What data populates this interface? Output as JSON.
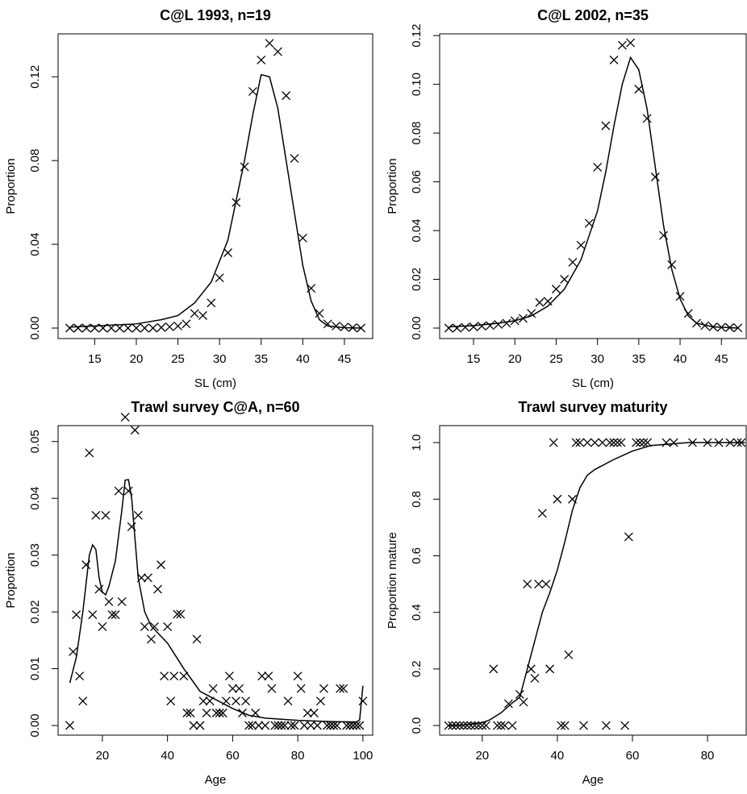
{
  "chart_data": [
    {
      "type": "scatter",
      "title": "C@L 1993, n=19",
      "xlabel": "SL (cm)",
      "ylabel": "Proportion",
      "xlim": [
        10.6,
        48.4
      ],
      "ylim": [
        -0.005,
        0.1405
      ],
      "xticks": [
        15,
        20,
        25,
        30,
        35,
        40,
        45
      ],
      "yticks": [
        {
          "value": 0,
          "label": "0.00"
        },
        {
          "value": 0.04,
          "label": "0.04"
        },
        {
          "value": 0.08,
          "label": "0.08"
        },
        {
          "value": 0.12,
          "label": "0.12"
        }
      ],
      "series": [
        {
          "kind": "points",
          "color": "#000000",
          "x": [
            12,
            13,
            14,
            15,
            16,
            17,
            18,
            19,
            20,
            21,
            22,
            23,
            24,
            25,
            26,
            27,
            28,
            29,
            30,
            31,
            32,
            33,
            34,
            35,
            36,
            37,
            38,
            39,
            40,
            41,
            42,
            43,
            44,
            45,
            46,
            47
          ],
          "values": [
            0,
            0,
            0,
            0,
            0,
            0,
            0,
            0,
            0,
            0,
            0,
            0.0003,
            0.0006,
            0.001,
            0.002,
            0.007,
            0.006,
            0.012,
            0.024,
            0.036,
            0.06,
            0.077,
            0.113,
            0.128,
            0.136,
            0.132,
            0.111,
            0.081,
            0.043,
            0.019,
            0.007,
            0.002,
            0.001,
            0.0005,
            0.0002,
            0
          ]
        },
        {
          "kind": "line",
          "color": "#000000",
          "x": [
            12,
            15,
            20,
            23,
            25,
            27,
            29,
            31,
            33,
            34,
            35,
            36,
            37,
            38,
            39,
            40,
            41,
            42,
            43,
            45,
            47
          ],
          "values": [
            0.0005,
            0.001,
            0.002,
            0.004,
            0.006,
            0.012,
            0.022,
            0.042,
            0.08,
            0.102,
            0.121,
            0.12,
            0.105,
            0.08,
            0.055,
            0.03,
            0.013,
            0.004,
            0.001,
            0.0002,
            0
          ]
        }
      ]
    },
    {
      "type": "scatter",
      "title": "C@L 2002, n=35",
      "xlabel": "SL (cm)",
      "ylabel": "Proportion",
      "xlim": [
        10.9,
        48.0
      ],
      "ylim": [
        -0.0043,
        0.1207
      ],
      "xticks": [
        15,
        20,
        25,
        30,
        35,
        40,
        45
      ],
      "yticks": [
        {
          "value": 0,
          "label": "0.00"
        },
        {
          "value": 0.02,
          "label": "0.02"
        },
        {
          "value": 0.04,
          "label": "0.04"
        },
        {
          "value": 0.06,
          "label": "0.06"
        },
        {
          "value": 0.08,
          "label": "0.08"
        },
        {
          "value": 0.1,
          "label": "0.10"
        },
        {
          "value": 0.12,
          "label": "0.12"
        }
      ],
      "series": [
        {
          "kind": "points",
          "color": "#000000",
          "x": [
            12,
            13,
            14,
            15,
            16,
            17,
            18,
            19,
            20,
            21,
            22,
            23,
            24,
            25,
            26,
            27,
            28,
            29,
            30,
            31,
            32,
            33,
            34,
            35,
            36,
            37,
            38,
            39,
            40,
            41,
            42,
            43,
            44,
            45,
            46,
            47
          ],
          "values": [
            0,
            0,
            0.0003,
            0.0005,
            0.0008,
            0.001,
            0.0015,
            0.002,
            0.003,
            0.004,
            0.006,
            0.0105,
            0.011,
            0.016,
            0.02,
            0.027,
            0.034,
            0.043,
            0.066,
            0.083,
            0.11,
            0.116,
            0.117,
            0.098,
            0.086,
            0.062,
            0.038,
            0.026,
            0.013,
            0.006,
            0.002,
            0.001,
            0.0005,
            0.0003,
            0.0002,
            0.0001
          ]
        },
        {
          "kind": "line",
          "color": "#000000",
          "x": [
            12,
            15,
            18,
            20,
            22,
            24,
            26,
            28,
            30,
            31,
            32,
            33,
            34,
            35,
            36,
            37,
            38,
            39,
            40,
            41,
            42,
            44,
            47
          ],
          "values": [
            0.0005,
            0.001,
            0.002,
            0.003,
            0.005,
            0.009,
            0.016,
            0.028,
            0.048,
            0.064,
            0.083,
            0.1,
            0.111,
            0.106,
            0.09,
            0.066,
            0.042,
            0.024,
            0.012,
            0.005,
            0.002,
            0.0005,
            0
          ]
        }
      ]
    },
    {
      "type": "scatter",
      "title": "Trawl survey C@A, n=60",
      "xlabel": "Age",
      "ylabel": "Proportion",
      "xlim": [
        6.4,
        103
      ],
      "ylim": [
        -0.0017,
        0.0528
      ],
      "xticks": [
        20,
        40,
        60,
        80,
        100
      ],
      "yticks": [
        {
          "value": 0,
          "label": "0.00"
        },
        {
          "value": 0.01,
          "label": "0.01"
        },
        {
          "value": 0.02,
          "label": "0.02"
        },
        {
          "value": 0.03,
          "label": "0.03"
        },
        {
          "value": 0.04,
          "label": "0.04"
        },
        {
          "value": 0.05,
          "label": "0.05"
        }
      ],
      "series": [
        {
          "kind": "points",
          "color": "#000000",
          "x": [
            10,
            11,
            12,
            13,
            14,
            15,
            16,
            17,
            18,
            19,
            20,
            21,
            22,
            23,
            24,
            25,
            26,
            27,
            28,
            29,
            30,
            31,
            32,
            33,
            34,
            35,
            36,
            37,
            38,
            39,
            40,
            41,
            42,
            43,
            44,
            45,
            46,
            47,
            48,
            49,
            50,
            51,
            52,
            53,
            54,
            55,
            56,
            57,
            58,
            59,
            60,
            61,
            62,
            63,
            64,
            65,
            66,
            67,
            68,
            69,
            70,
            71,
            72,
            73,
            74,
            75,
            76,
            77,
            78,
            79,
            80,
            81,
            82,
            83,
            84,
            85,
            86,
            87,
            88,
            89,
            90,
            91,
            92,
            93,
            94,
            95,
            96,
            97,
            98,
            99,
            100
          ],
          "values": [
            0,
            0.013,
            0.0195,
            0.0087,
            0.0043,
            0.0283,
            0.048,
            0.0195,
            0.037,
            0.024,
            0.0174,
            0.037,
            0.0218,
            0.0195,
            0.0195,
            0.0413,
            0.0218,
            0.0543,
            0.0413,
            0.035,
            0.052,
            0.037,
            0.026,
            0.0174,
            0.026,
            0.0152,
            0.0174,
            0.024,
            0.0283,
            0.0087,
            0.0174,
            0.0043,
            0.0087,
            0.0196,
            0.0196,
            0.0087,
            0.0022,
            0.0022,
            0,
            0.0152,
            0,
            0.0043,
            0.0022,
            0.0043,
            0.0065,
            0.0022,
            0.0022,
            0.0022,
            0.0043,
            0.0087,
            0.0065,
            0.0043,
            0.0065,
            0.0022,
            0.0043,
            0,
            0,
            0.0022,
            0,
            0.0087,
            0,
            0.0087,
            0.0065,
            0,
            0,
            0,
            0,
            0.0043,
            0,
            0,
            0.0087,
            0.0065,
            0,
            0.0022,
            0,
            0.0022,
            0,
            0.0043,
            0.0065,
            0,
            0,
            0,
            0,
            0.0065,
            0.0065,
            0,
            0,
            0,
            0,
            0,
            0.0043
          ]
        },
        {
          "kind": "line",
          "color": "#000000",
          "x": [
            10,
            12,
            14,
            16,
            17,
            18,
            19,
            20,
            21,
            22,
            24,
            26,
            27,
            28,
            29,
            30,
            31,
            33,
            35,
            40,
            45,
            50,
            55,
            60,
            65,
            70,
            80,
            90,
            98,
            99,
            100
          ],
          "values": [
            0.0075,
            0.012,
            0.02,
            0.03,
            0.0318,
            0.031,
            0.026,
            0.0235,
            0.023,
            0.0245,
            0.029,
            0.038,
            0.0432,
            0.0433,
            0.04,
            0.033,
            0.026,
            0.02,
            0.0175,
            0.0145,
            0.01,
            0.006,
            0.0045,
            0.003,
            0.0018,
            0.0013,
            0.0009,
            0.0007,
            0.0006,
            0.001,
            0.007
          ]
        }
      ]
    },
    {
      "type": "scatter",
      "title": "Trawl survey maturity",
      "xlabel": "Age",
      "ylabel": "Proportion mature",
      "xlim": [
        8.65,
        90.3
      ],
      "ylim": [
        -0.034,
        1.06
      ],
      "xticks": [
        20,
        40,
        60,
        80
      ],
      "yticks": [
        {
          "value": 0,
          "label": "0.0"
        },
        {
          "value": 0.2,
          "label": "0.2"
        },
        {
          "value": 0.4,
          "label": "0.4"
        },
        {
          "value": 0.6,
          "label": "0.6"
        },
        {
          "value": 0.8,
          "label": "0.8"
        },
        {
          "value": 1,
          "label": "1.0"
        }
      ],
      "series": [
        {
          "kind": "points",
          "color": "#000000",
          "x": [
            11,
            12,
            13,
            14,
            15,
            16,
            17,
            18,
            19,
            20,
            21,
            23,
            24,
            25,
            26,
            27,
            28,
            30,
            31,
            32,
            33,
            34,
            35,
            36,
            37,
            38,
            39,
            40,
            41,
            42,
            43,
            44,
            45,
            46,
            47,
            48,
            50,
            52,
            53,
            54,
            55,
            56,
            57,
            58,
            59,
            61,
            62,
            63,
            64,
            69,
            71,
            76,
            80,
            83,
            86,
            88,
            89
          ],
          "values": [
            0,
            0,
            0,
            0,
            0,
            0,
            0,
            0,
            0,
            0,
            0,
            0.2,
            0,
            0,
            0,
            0.077,
            0,
            0.11,
            0.083,
            0.5,
            0.2,
            0.167,
            0.5,
            0.75,
            0.5,
            0.2,
            1,
            0.8,
            0,
            0,
            0.25,
            0.8,
            1,
            1,
            0,
            1,
            1,
            1,
            0,
            1,
            1,
            1,
            1,
            0,
            0.667,
            1,
            1,
            1,
            1,
            1,
            1,
            1,
            1,
            1,
            1,
            1,
            1
          ]
        },
        {
          "kind": "line",
          "color": "#000000",
          "x": [
            11,
            15,
            20,
            22,
            25,
            28,
            30,
            32,
            34,
            36,
            38,
            40,
            42,
            44,
            46,
            48,
            50,
            55,
            60,
            65,
            70,
            75,
            90
          ],
          "values": [
            0,
            0.002,
            0.01,
            0.02,
            0.045,
            0.08,
            0.1,
            0.2,
            0.3,
            0.4,
            0.47,
            0.55,
            0.65,
            0.76,
            0.84,
            0.885,
            0.905,
            0.94,
            0.97,
            0.99,
            0.995,
            1,
            1
          ]
        }
      ]
    }
  ]
}
